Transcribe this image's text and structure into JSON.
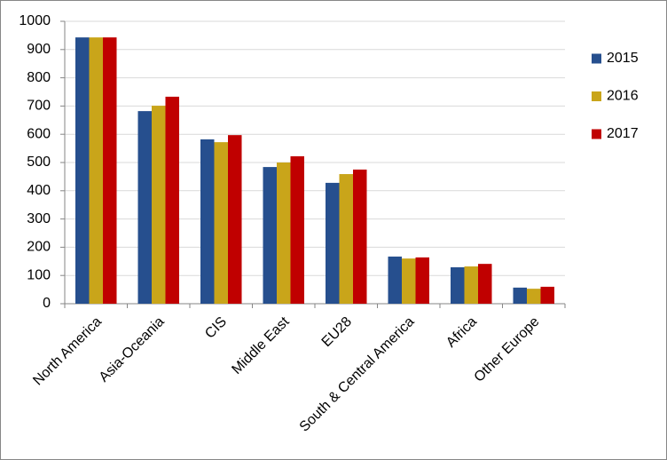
{
  "chart_data": {
    "type": "bar",
    "categories": [
      "North America",
      "Asia-Oceania",
      "CIS",
      "Middle East",
      "EU28",
      "South & Central America",
      "Africa",
      "Other Europe"
    ],
    "series": [
      {
        "name": "2015",
        "color": "#264f8e",
        "values": [
          943,
          682,
          582,
          484,
          428,
          167,
          129,
          57
        ]
      },
      {
        "name": "2016",
        "color": "#c9a51a",
        "values": [
          943,
          701,
          572,
          500,
          459,
          160,
          132,
          53
        ]
      },
      {
        "name": "2017",
        "color": "#c00000",
        "values": [
          943,
          733,
          597,
          522,
          475,
          164,
          141,
          60
        ]
      }
    ],
    "ylim": [
      0,
      1000
    ],
    "yticks": [
      0,
      100,
      200,
      300,
      400,
      500,
      600,
      700,
      800,
      900,
      1000
    ],
    "grid": true,
    "legend": "right"
  }
}
